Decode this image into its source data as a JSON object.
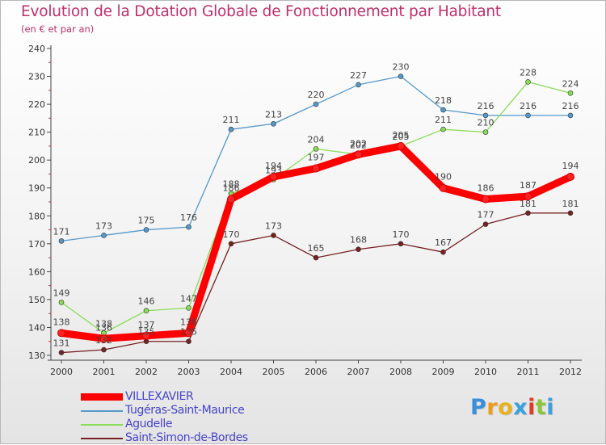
{
  "title": "Evolution de la Dotation Globale de Fonctionnement par Habitant",
  "subtitle": "(en € et par an)",
  "logo": {
    "letters": [
      "P",
      "r",
      "o",
      "x",
      "i",
      "t",
      "i"
    ],
    "colors": [
      "#3b8fd8",
      "#f09a1a",
      "#e8b21c",
      "#3aa0e0",
      "#e23a2a",
      "#8cc43c",
      "#3aa0e0"
    ]
  },
  "chart_data": {
    "type": "line",
    "title": "Evolution de la Dotation Globale de Fonctionnement par Habitant",
    "subtitle": "(en € et par an)",
    "xlabel": "",
    "ylabel": "",
    "x": [
      "2000",
      "2001",
      "2002",
      "2003",
      "2004",
      "2005",
      "2006",
      "2007",
      "2008",
      "2009",
      "2010",
      "2011",
      "2012"
    ],
    "ylim": [
      130,
      240
    ],
    "yticks": [
      130,
      140,
      150,
      160,
      170,
      180,
      190,
      200,
      210,
      220,
      230,
      240
    ],
    "grid": false,
    "legend_position": "bottom-left",
    "series": [
      {
        "name": "Tugéras-Saint-Maurice",
        "color": "#5599cc",
        "values": [
          171,
          173,
          175,
          176,
          211,
          213,
          220,
          227,
          230,
          218,
          216,
          216,
          216
        ]
      },
      {
        "name": "Agudelle",
        "color": "#88dd55",
        "values": [
          149,
          138,
          146,
          147,
          188,
          193,
          204,
          202,
          205,
          211,
          210,
          228,
          224
        ]
      },
      {
        "name": "Saint-Simon-de-Bordes",
        "color": "#772222",
        "values": [
          131,
          132,
          135,
          135,
          170,
          173,
          165,
          168,
          170,
          167,
          177,
          181,
          181
        ]
      },
      {
        "name": "VILLEXAVIER",
        "color": "#ff0000",
        "values": [
          138,
          136,
          137,
          138,
          186,
          194,
          197,
          202,
          205,
          190,
          186,
          187,
          194
        ]
      }
    ],
    "legend_order": [
      "VILLEXAVIER",
      "Tugéras-Saint-Maurice",
      "Agudelle",
      "Saint-Simon-de-Bordes"
    ]
  }
}
